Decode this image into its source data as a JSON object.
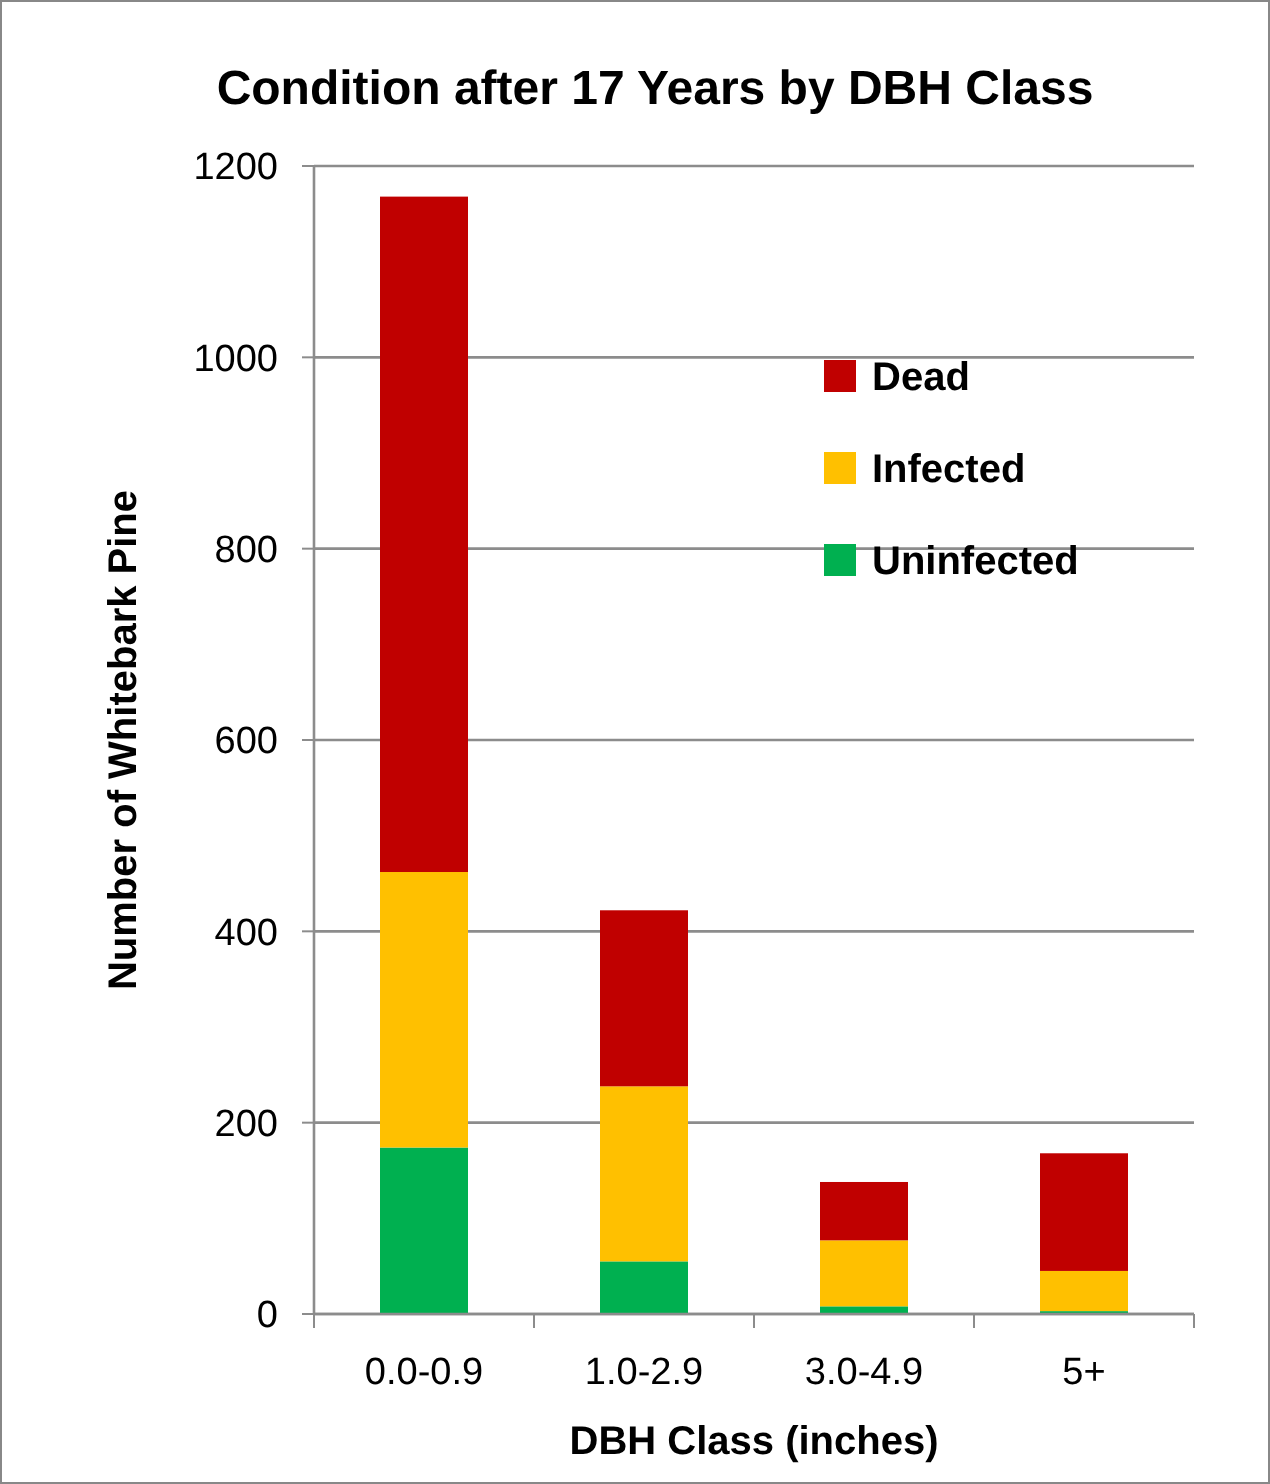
{
  "chart_data": {
    "type": "bar",
    "title": "Condition after 17 Years by DBH Class",
    "xlabel": "DBH Class (inches)",
    "ylabel": "Number of Whitebark Pine",
    "categories": [
      "0.0-0.9",
      "1.0-2.9",
      "3.0-4.9",
      "5+"
    ],
    "stacked": true,
    "series": [
      {
        "name": "Uninfected",
        "color": "#00b050",
        "values": [
          174,
          55,
          8,
          3
        ]
      },
      {
        "name": "Infected",
        "color": "#ffc000",
        "values": [
          288,
          183,
          69,
          42
        ]
      },
      {
        "name": "Dead",
        "color": "#c00000",
        "values": [
          706,
          184,
          61,
          123
        ]
      }
    ],
    "ylim": [
      0,
      1200
    ],
    "yticks": [
      0,
      200,
      400,
      600,
      800,
      1000,
      1200
    ],
    "grid": "y",
    "legend": "top right"
  }
}
